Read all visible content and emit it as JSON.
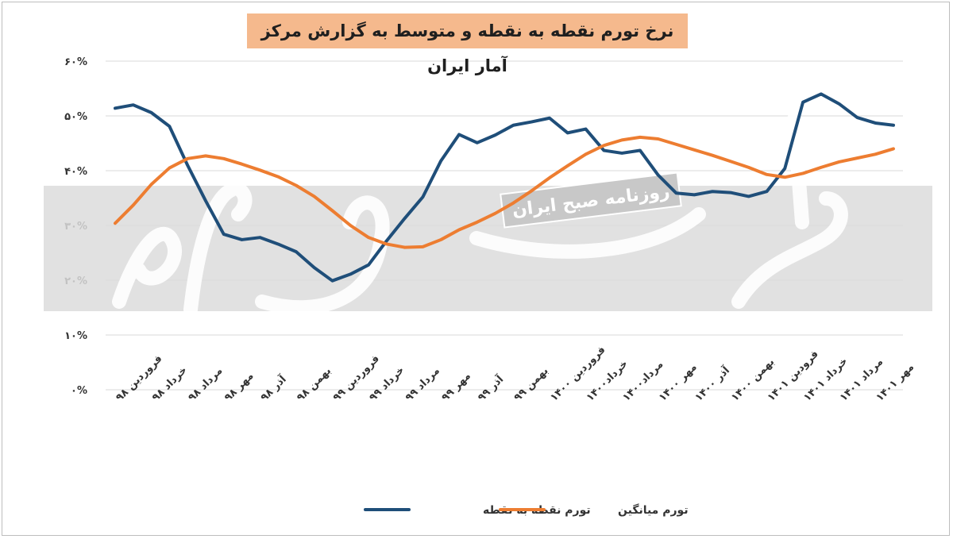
{
  "chart_data": {
    "type": "line",
    "title": "نرخ تورم نقطه به نقطه و متوسط به گزارش مرکز آمار ایران",
    "xlabel": "",
    "ylabel": "",
    "ylim": [
      0,
      60
    ],
    "yticks": [
      "۰%",
      "۱۰%",
      "۲۰%",
      "۳۰%",
      "۴۰%",
      "۵۰%",
      "۶۰%"
    ],
    "ytick_values": [
      0,
      10,
      20,
      30,
      40,
      50,
      60
    ],
    "grid": true,
    "legend_position": "bottom",
    "x_tick_labels": [
      {
        "i": 0,
        "label": "فروردین ۹۸"
      },
      {
        "i": 2,
        "label": "خرداد ۹۸"
      },
      {
        "i": 4,
        "label": "مرداد ۹۸"
      },
      {
        "i": 6,
        "label": "مهر ۹۸"
      },
      {
        "i": 8,
        "label": "آذر ۹۸"
      },
      {
        "i": 10,
        "label": "بهمن ۹۸"
      },
      {
        "i": 12,
        "label": "فروردین ۹۹"
      },
      {
        "i": 14,
        "label": "خرداد ۹۹"
      },
      {
        "i": 16,
        "label": "مرداد ۹۹"
      },
      {
        "i": 18,
        "label": "مهر ۹۹"
      },
      {
        "i": 20,
        "label": "آذر ۹۹"
      },
      {
        "i": 22,
        "label": "بهمن ۹۹"
      },
      {
        "i": 24,
        "label": "فروردین ۱۴۰۰"
      },
      {
        "i": 26,
        "label": "خرداد۱۴۰۰"
      },
      {
        "i": 28,
        "label": "مرداد۱۴۰۰"
      },
      {
        "i": 30,
        "label": "مهر ۱۴۰۰"
      },
      {
        "i": 32,
        "label": "آذر ۱۴۰۰"
      },
      {
        "i": 34,
        "label": "بهمن ۱۴۰۰"
      },
      {
        "i": 36,
        "label": "فرودین ۱۴۰۱"
      },
      {
        "i": 38,
        "label": "خرداد ۱۴۰۱"
      },
      {
        "i": 40,
        "label": "مرداد ۱۴۰۱"
      },
      {
        "i": 42,
        "label": "مهر ۱۴۰۱"
      }
    ],
    "series": [
      {
        "name": "تورم نقطه به نقطه",
        "color": "#1f4e79",
        "values": [
          51.4,
          52.0,
          50.6,
          48.1,
          41.0,
          34.5,
          28.4,
          27.4,
          27.8,
          26.6,
          25.2,
          22.3,
          19.9,
          21.1,
          22.8,
          27.2,
          31.3,
          35.2,
          41.8,
          46.6,
          45.1,
          46.5,
          48.3,
          48.9,
          49.6,
          46.9,
          47.6,
          43.7,
          43.2,
          43.7,
          39.2,
          35.9,
          35.6,
          36.2,
          36.0,
          35.3,
          36.2,
          40.4,
          52.5,
          54.0,
          52.2,
          49.7,
          48.7,
          48.3
        ],
        "legend_label": "تورم نقطه به نقطه"
      },
      {
        "name": "تورم میانگین",
        "color": "#ed7d31",
        "values": [
          30.4,
          33.7,
          37.5,
          40.5,
          42.2,
          42.7,
          42.2,
          41.2,
          40.1,
          38.9,
          37.3,
          35.3,
          32.7,
          30.0,
          27.8,
          26.6,
          26.0,
          26.1,
          27.4,
          29.2,
          30.6,
          32.2,
          34.1,
          36.3,
          38.7,
          40.9,
          43.0,
          44.6,
          45.6,
          46.1,
          45.8,
          44.8,
          43.8,
          42.8,
          41.7,
          40.6,
          39.3,
          38.8,
          39.5,
          40.6,
          41.6,
          42.3,
          43.0,
          44.0
        ],
        "legend_label": "تورم میانگین"
      }
    ],
    "watermark": {
      "stamp_text": "روزنامه صبح ایران",
      "logo_text": "دنیای اقتصاد"
    }
  }
}
